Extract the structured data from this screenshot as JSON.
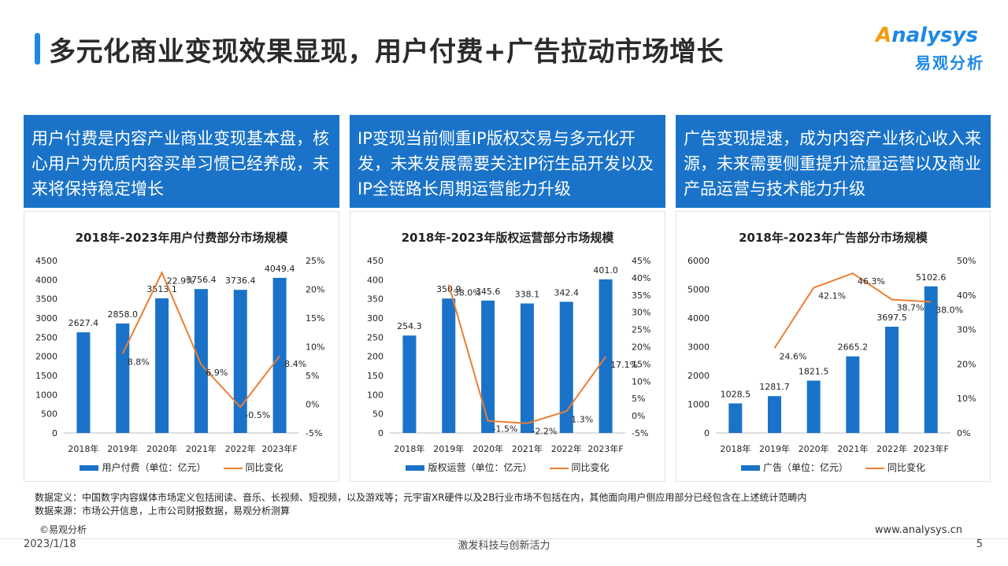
{
  "header": {
    "title": "多元化商业变现效果显现，用户付费+广告拉动市场增长",
    "logo_en_mark": "A",
    "logo_en_rest": "nalysys",
    "logo_cn": "易观分析"
  },
  "boxes": [
    {
      "text": "用户付费是内容产业商业变现基本盘，核心用户为优质内容买单习惯已经养成，未来将保持稳定增长"
    },
    {
      "text": "IP变现当前侧重IP版权交易与多元化开发，未来发展需要关注IP衍生品开发以及IP全链路长周期运营能力升级"
    },
    {
      "text": "广告变现提速，成为内容产业核心收入来源，未来需要侧重提升流量运营以及商业产品运营与技术能力升级"
    }
  ],
  "chart_data": [
    {
      "type": "bar",
      "title": "2018年-2023年用户付费部分市场规模",
      "categories": [
        "2018年",
        "2019年",
        "2020年",
        "2021年",
        "2022年",
        "2023年F"
      ],
      "series": [
        {
          "name": "用户付费（单位：亿元）",
          "kind": "bar",
          "axis": "left",
          "values": [
            2627.4,
            2858.0,
            3513.1,
            3756.4,
            3736.4,
            4049.4
          ],
          "labels": [
            "2627.4",
            "2858.0",
            "3513.1",
            "3756.4",
            "3736.4",
            "4049.4"
          ]
        },
        {
          "name": "同比变化",
          "kind": "line",
          "axis": "right",
          "values": [
            null,
            8.8,
            22.9,
            6.9,
            -0.5,
            8.4
          ],
          "labels": [
            "",
            "8.8%",
            "22.9%",
            "6.9%",
            "-0.5%",
            "8.4%"
          ]
        }
      ],
      "ylim_left": [
        0,
        4500
      ],
      "yticks_left": [
        "0",
        "500",
        "1000",
        "1500",
        "2000",
        "2500",
        "3000",
        "3500",
        "4000",
        "4500"
      ],
      "ylim_right": [
        -5,
        25
      ],
      "yticks_right": [
        "-5%",
        "0%",
        "5%",
        "10%",
        "15%",
        "20%",
        "25%"
      ],
      "legend_bar": "用户付费（单位：亿元）",
      "legend_line": "同比变化",
      "bar_color": "#1a73c8",
      "line_color": "#ed7d31"
    },
    {
      "type": "bar",
      "title": "2018年-2023年版权运营部分市场规模",
      "categories": [
        "2018年",
        "2019年",
        "2020年",
        "2021年",
        "2022年",
        "2023年F"
      ],
      "series": [
        {
          "name": "版权运营（单位：亿元）",
          "kind": "bar",
          "axis": "left",
          "values": [
            254.3,
            350.9,
            345.6,
            338.1,
            342.4,
            401.0
          ],
          "labels": [
            "254.3",
            "350.9",
            "345.6",
            "338.1",
            "342.4",
            "401.0"
          ]
        },
        {
          "name": "同比变化",
          "kind": "line",
          "axis": "right",
          "values": [
            null,
            38.0,
            -1.5,
            -2.2,
            1.3,
            17.1
          ],
          "labels": [
            "",
            "38.0%",
            "-1.5%",
            "-2.2%",
            "1.3%",
            "17.1%"
          ]
        }
      ],
      "ylim_left": [
        0,
        450
      ],
      "yticks_left": [
        "0",
        "50",
        "100",
        "150",
        "200",
        "250",
        "300",
        "350",
        "400",
        "450"
      ],
      "ylim_right": [
        -5,
        45
      ],
      "yticks_right": [
        "-5%",
        "0%",
        "5%",
        "10%",
        "15%",
        "20%",
        "25%",
        "30%",
        "35%",
        "40%",
        "45%"
      ],
      "legend_bar": "版权运营（单位：亿元）",
      "legend_line": "同比变化",
      "bar_color": "#1a73c8",
      "line_color": "#ed7d31"
    },
    {
      "type": "bar",
      "title": "2018年-2023年广告部分市场规模",
      "categories": [
        "2018年",
        "2019年",
        "2020年",
        "2021年",
        "2022年",
        "2023年F"
      ],
      "series": [
        {
          "name": "广告（单位：亿元）",
          "kind": "bar",
          "axis": "left",
          "values": [
            1028.5,
            1281.7,
            1821.5,
            2665.2,
            3697.5,
            5102.6
          ],
          "labels": [
            "1028.5",
            "1281.7",
            "1821.5",
            "2665.2",
            "3697.5",
            "5102.6"
          ]
        },
        {
          "name": "同比变化",
          "kind": "line",
          "axis": "right",
          "values": [
            null,
            24.6,
            42.1,
            46.3,
            38.7,
            38.0
          ],
          "labels": [
            "",
            "24.6%",
            "42.1%",
            "46.3%",
            "38.7%",
            "38.0%"
          ]
        }
      ],
      "ylim_left": [
        0,
        6000
      ],
      "yticks_left": [
        "0",
        "1000",
        "2000",
        "3000",
        "4000",
        "5000",
        "6000"
      ],
      "ylim_right": [
        0,
        50
      ],
      "yticks_right": [
        "0%",
        "10%",
        "20%",
        "30%",
        "40%",
        "50%"
      ],
      "legend_bar": "广告（单位：亿元）",
      "legend_line": "同比变化",
      "bar_color": "#1a73c8",
      "line_color": "#ed7d31"
    }
  ],
  "notes": {
    "definition": "数据定义：中国数字内容媒体市场定义包括阅读、音乐、长视频、短视频，以及游戏等；元宇宙XR硬件以及2B行业市场不包括在内，其他面向用户侧应用部分已经包含在上述统计范畴内",
    "source": "数据来源：市场公开信息，上市公司财报数据，易观分析测算"
  },
  "footer": {
    "copyright": "©易观分析",
    "date": "2023/1/18",
    "slogan": "激发科技与创新活力",
    "website": "www.analysys.cn",
    "page": "5"
  }
}
